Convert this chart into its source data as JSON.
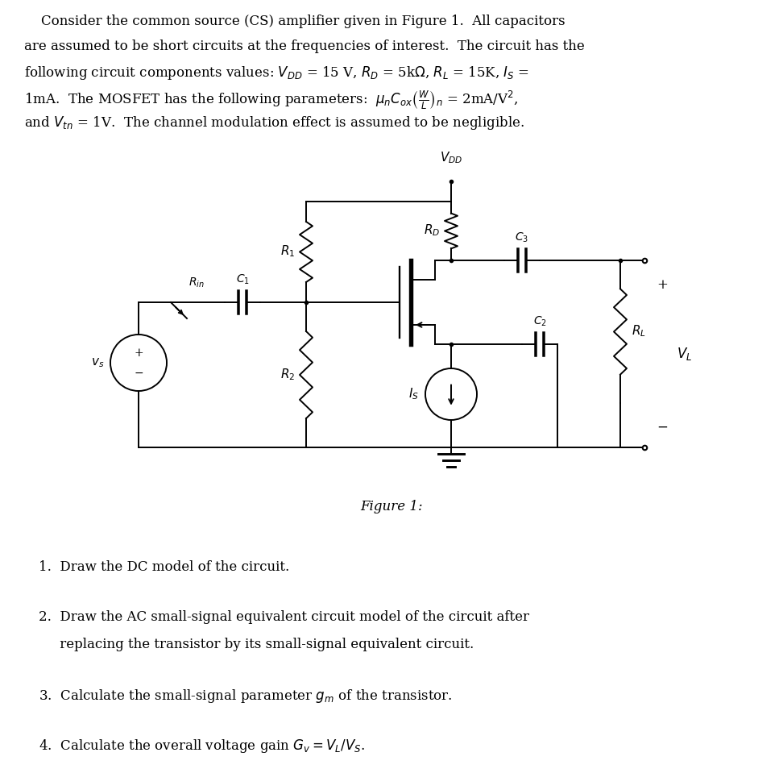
{
  "bg_color": "#ffffff",
  "fig_width": 9.72,
  "fig_height": 9.49,
  "top_lines": [
    "    Consider the common source (CS) amplifier given in Figure 1.  All capacitors",
    "are assumed to be short circuits at the frequencies of interest.  The circuit has the",
    "following circuit components values: $V_{DD}$ = 15 V, $R_D$ = 5k$\\Omega$, $R_L$ = 15K, $I_S$ =",
    "1mA.  The MOSFET has the following parameters:  $\\mu_n C_{ox} \\left(\\frac{W}{L}\\right)_n$ = 2mA/V$^2$,",
    "and $V_{tn}$ = 1V.  The channel modulation effect is assumed to be negligible."
  ],
  "q_lines": [
    "1.  Draw the DC model of the circuit.",
    "",
    "2.  Draw the AC small-signal equivalent circuit model of the circuit after",
    "     replacing the transistor by its small-signal equivalent circuit.",
    "",
    "3.  Calculate the small-signal parameter $g_m$ of the transistor.",
    "",
    "4.  Calculate the overall voltage gain $G_v = V_L/V_S$."
  ],
  "figure_caption": "Figure 1:",
  "lw": 1.4
}
